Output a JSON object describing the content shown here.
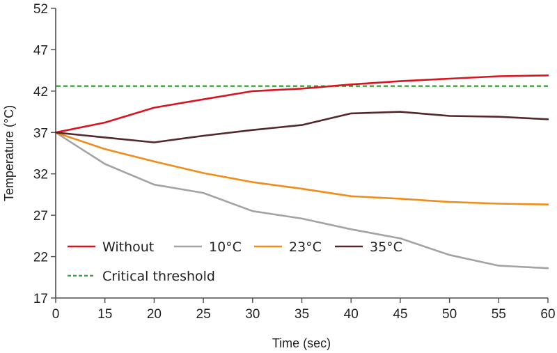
{
  "chart_data": {
    "type": "line",
    "title": "",
    "xlabel": "Time (sec)",
    "ylabel": "Temperature (°C)",
    "x": [
      0,
      15,
      20,
      25,
      30,
      35,
      40,
      45,
      50,
      55,
      60
    ],
    "x_tick_labels": [
      "0",
      "15",
      "20",
      "25",
      "30",
      "35",
      "40",
      "45",
      "50",
      "55",
      "60"
    ],
    "x_axis_kind": "categorical-evenly-spaced",
    "ylim": [
      17,
      52
    ],
    "y_ticks": [
      17,
      22,
      27,
      32,
      37,
      42,
      47,
      52
    ],
    "y_tick_labels": [
      "17",
      "22",
      "27",
      "32",
      "37",
      "42",
      "47",
      "52"
    ],
    "grid": false,
    "legend_position": "bottom-left inside plot",
    "series": [
      {
        "name": "Without",
        "color": "#d7141f",
        "style": "solid",
        "values": [
          37,
          38.2,
          40.0,
          41.0,
          42.0,
          42.3,
          42.8,
          43.2,
          43.5,
          43.8,
          43.9
        ]
      },
      {
        "name": "10°C",
        "color": "#a3a3a3",
        "style": "solid",
        "values": [
          37,
          33.2,
          30.7,
          29.7,
          27.5,
          26.6,
          25.3,
          24.2,
          22.2,
          20.9,
          20.6
        ]
      },
      {
        "name": "23°C",
        "color": "#ef8c1a",
        "style": "solid",
        "values": [
          37,
          35.0,
          33.5,
          32.1,
          31.0,
          30.2,
          29.3,
          29.0,
          28.6,
          28.4,
          28.3
        ]
      },
      {
        "name": "35°C",
        "color": "#54282b",
        "style": "solid",
        "values": [
          37,
          36.4,
          35.8,
          36.6,
          37.3,
          37.9,
          39.3,
          39.5,
          39.0,
          38.9,
          38.6
        ]
      }
    ],
    "reference_lines": [
      {
        "name": "Critical threshold",
        "color": "#3f9e3a",
        "style": "dashed",
        "y": 42.6
      }
    ],
    "legend": [
      {
        "label": "Without",
        "color": "#d7141f",
        "style": "solid"
      },
      {
        "label": "10°C",
        "color": "#a3a3a3",
        "style": "solid"
      },
      {
        "label": "23°C",
        "color": "#ef8c1a",
        "style": "solid"
      },
      {
        "label": "35°C",
        "color": "#54282b",
        "style": "solid"
      },
      {
        "label": "Critical threshold",
        "color": "#3f9e3a",
        "style": "dashed"
      }
    ],
    "axis_color": "#4d4d4d"
  }
}
